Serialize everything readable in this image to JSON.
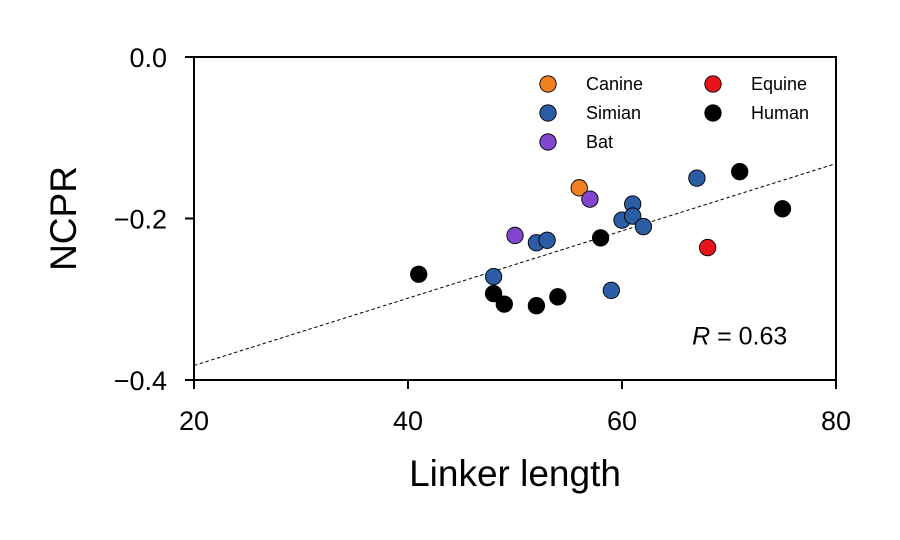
{
  "chart_data": {
    "type": "scatter",
    "xlabel": "Linker length",
    "ylabel": "NCPR",
    "xlim": [
      20,
      80
    ],
    "ylim": [
      -0.4,
      0.0
    ],
    "xticks": [
      20,
      40,
      60,
      80
    ],
    "xtick_labels": [
      "20",
      "40",
      "60",
      "80"
    ],
    "yticks": [
      0.0,
      -0.2,
      -0.4
    ],
    "ytick_labels": [
      "0.0",
      "−0.2",
      "−0.4"
    ],
    "grid": false,
    "legend_position": "top-right",
    "series": [
      {
        "name": "Canine",
        "color": "#f07f1f",
        "points": [
          [
            56,
            -0.162
          ]
        ]
      },
      {
        "name": "Simian",
        "color": "#2c5ca3",
        "points": [
          [
            48,
            -0.272
          ],
          [
            52,
            -0.23
          ],
          [
            53,
            -0.227
          ],
          [
            59,
            -0.289
          ],
          [
            60,
            -0.202
          ],
          [
            61,
            -0.182
          ],
          [
            61,
            -0.197
          ],
          [
            62,
            -0.21
          ],
          [
            67,
            -0.15
          ]
        ]
      },
      {
        "name": "Bat",
        "color": "#8145cf",
        "points": [
          [
            50,
            -0.221
          ],
          [
            57,
            -0.176
          ]
        ]
      },
      {
        "name": "Equine",
        "color": "#e9141a",
        "points": [
          [
            68,
            -0.236
          ]
        ]
      },
      {
        "name": "Human",
        "color": "#000000",
        "points": [
          [
            41,
            -0.269
          ],
          [
            48,
            -0.293
          ],
          [
            49,
            -0.306
          ],
          [
            52,
            -0.308
          ],
          [
            54,
            -0.297
          ],
          [
            58,
            -0.224
          ],
          [
            71,
            -0.142
          ],
          [
            75,
            -0.188
          ]
        ]
      }
    ],
    "legend_order": [
      "Canine",
      "Simian",
      "Bat",
      "Equine",
      "Human"
    ],
    "fit_line": {
      "style": "dashed",
      "color": "#000000",
      "points": [
        [
          20,
          -0.382
        ],
        [
          80,
          -0.132
        ]
      ]
    },
    "annotation": {
      "italic": "R",
      "rest": " = 0.63",
      "x": 71,
      "y": -0.345
    }
  }
}
